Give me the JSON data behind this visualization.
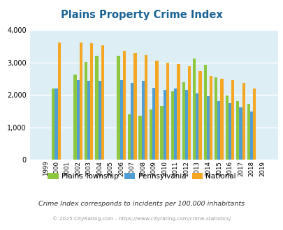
{
  "title": "Plains Property Crime Index",
  "years": [
    1999,
    2000,
    2001,
    2002,
    2003,
    2004,
    2005,
    2006,
    2007,
    2008,
    2009,
    2010,
    2011,
    2012,
    2013,
    2014,
    2015,
    2016,
    2017,
    2018,
    2019
  ],
  "plains": [
    0,
    2200,
    0,
    2620,
    3010,
    3200,
    0,
    3210,
    1400,
    1360,
    1560,
    1660,
    2100,
    2380,
    3110,
    2930,
    2540,
    1990,
    1820,
    1720,
    0
  ],
  "pennsylvania": [
    0,
    2190,
    0,
    2460,
    2430,
    2440,
    0,
    2460,
    2360,
    2440,
    2210,
    2160,
    2200,
    2160,
    2050,
    1950,
    1800,
    1740,
    1620,
    1490,
    0
  ],
  "national": [
    0,
    3620,
    0,
    3620,
    3590,
    3520,
    0,
    3360,
    3290,
    3220,
    3050,
    2990,
    2940,
    2880,
    2730,
    2590,
    2500,
    2450,
    2360,
    2200,
    0
  ],
  "colors": {
    "plains": "#8dc63f",
    "pennsylvania": "#4f9fd4",
    "national": "#f5a623"
  },
  "ylim": [
    0,
    4000
  ],
  "bg_color": "#ddeef5",
  "title_color": "#1a6496",
  "legend_labels": [
    "Plains Township",
    "Pennsylvania",
    "National"
  ],
  "subtitle": "Crime Index corresponds to incidents per 100,000 inhabitants",
  "footer": "© 2025 CityRating.com - https://www.cityrating.com/crime-statistics/",
  "bar_width": 0.27,
  "grid_color": "#ffffff"
}
